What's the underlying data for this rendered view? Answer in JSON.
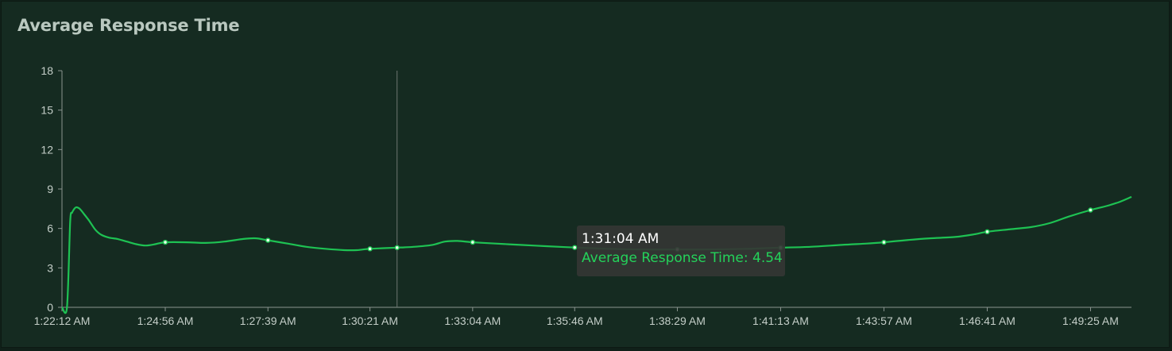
{
  "panel": {
    "title": "Average Response Time"
  },
  "tooltip": {
    "time": "1:31:04 AM",
    "series_label": "Average Response Time: 4.54"
  },
  "colors": {
    "background": "#152b21",
    "line": "#1ec253",
    "axis": "#8a948f",
    "tick_text": "#c4cec8",
    "title": "#b9c8bf"
  },
  "chart_data": {
    "type": "line",
    "title": "Average Response Time",
    "xlabel": "",
    "ylabel": "",
    "ylim": [
      0,
      18
    ],
    "yticks": [
      0,
      3,
      6,
      9,
      12,
      15,
      18
    ],
    "xtick_labels": [
      "1:22:12 AM",
      "1:24:56 AM",
      "1:27:39 AM",
      "1:30:21 AM",
      "1:33:04 AM",
      "1:35:46 AM",
      "1:38:29 AM",
      "1:41:13 AM",
      "1:43:57 AM",
      "1:46:41 AM",
      "1:49:25 AM"
    ],
    "xlim": [
      "1:22:12 AM",
      "1:50:30 AM"
    ],
    "grid": false,
    "crosshair_time": "1:31:04 AM",
    "series": [
      {
        "name": "Average Response Time",
        "x": [
          "1:22:12 AM",
          "1:22:20 AM",
          "1:22:25 AM",
          "1:22:28 AM",
          "1:22:34 AM",
          "1:22:40 AM",
          "1:22:47 AM",
          "1:22:55 AM",
          "1:23:05 AM",
          "1:23:15 AM",
          "1:23:27 AM",
          "1:23:40 AM",
          "1:23:55 AM",
          "1:24:10 AM",
          "1:24:25 AM",
          "1:24:40 AM",
          "1:24:56 AM",
          "1:25:30 AM",
          "1:26:00 AM",
          "1:26:30 AM",
          "1:27:00 AM",
          "1:27:20 AM",
          "1:27:39 AM",
          "1:28:10 AM",
          "1:28:40 AM",
          "1:29:10 AM",
          "1:29:40 AM",
          "1:30:00 AM",
          "1:30:21 AM",
          "1:31:04 AM",
          "1:31:30 AM",
          "1:32:00 AM",
          "1:32:20 AM",
          "1:32:40 AM",
          "1:33:04 AM",
          "1:33:40 AM",
          "1:34:20 AM",
          "1:35:00 AM",
          "1:35:46 AM",
          "1:36:40 AM",
          "1:37:30 AM",
          "1:38:29 AM",
          "1:39:20 AM",
          "1:40:20 AM",
          "1:41:13 AM",
          "1:42:00 AM",
          "1:42:50 AM",
          "1:43:30 AM",
          "1:43:57 AM",
          "1:44:30 AM",
          "1:45:10 AM",
          "1:45:50 AM",
          "1:46:20 AM",
          "1:46:41 AM",
          "1:47:20 AM",
          "1:47:50 AM",
          "1:48:20 AM",
          "1:48:50 AM",
          "1:49:25 AM",
          "1:49:50 AM",
          "1:50:10 AM",
          "1:50:30 AM"
        ],
        "y": [
          0.0,
          0.0,
          6.5,
          7.2,
          7.6,
          7.5,
          7.1,
          6.6,
          5.9,
          5.5,
          5.3,
          5.2,
          5.0,
          4.8,
          4.7,
          4.8,
          4.95,
          4.95,
          4.9,
          5.0,
          5.2,
          5.25,
          5.1,
          4.85,
          4.6,
          4.45,
          4.35,
          4.35,
          4.45,
          4.54,
          4.6,
          4.75,
          5.0,
          5.05,
          4.95,
          4.85,
          4.75,
          4.65,
          4.55,
          4.45,
          4.4,
          4.4,
          4.4,
          4.45,
          4.54,
          4.6,
          4.75,
          4.85,
          4.95,
          5.1,
          5.25,
          5.35,
          5.55,
          5.75,
          5.95,
          6.1,
          6.4,
          6.9,
          7.4,
          7.7,
          8.0,
          8.4
        ]
      }
    ],
    "marker_times": [
      "1:24:56 AM",
      "1:27:39 AM",
      "1:30:21 AM",
      "1:31:04 AM",
      "1:33:04 AM",
      "1:35:46 AM",
      "1:38:29 AM",
      "1:41:13 AM",
      "1:43:57 AM",
      "1:46:41 AM",
      "1:49:25 AM"
    ]
  }
}
